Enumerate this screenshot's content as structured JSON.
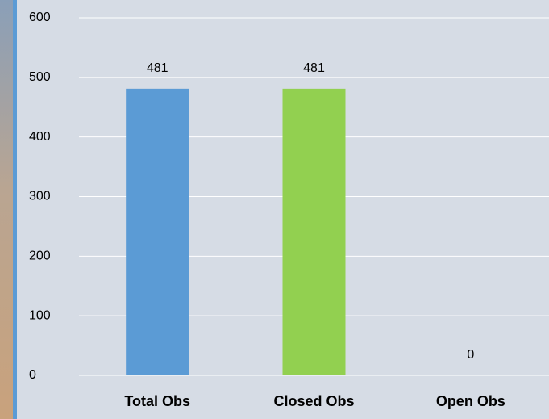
{
  "chart_data": {
    "type": "bar",
    "categories": [
      "Total Obs",
      "Closed Obs",
      "Open Obs"
    ],
    "values": [
      481,
      481,
      0
    ],
    "colors": [
      "#5b9bd5",
      "#92d050",
      "#ffc000"
    ],
    "ylim": [
      0,
      600
    ],
    "yticks": [
      0,
      100,
      200,
      300,
      400,
      500,
      600
    ],
    "grid": true
  }
}
